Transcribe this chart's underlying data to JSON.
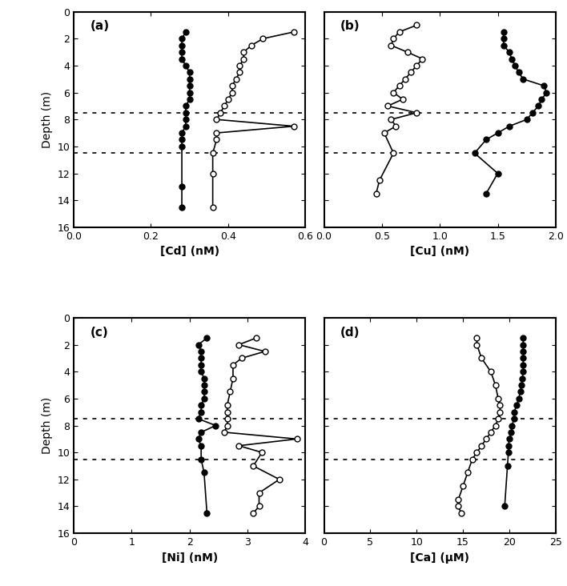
{
  "panels": [
    {
      "label": "(a)",
      "xlabel": "[Cd] (nM)",
      "xlim": [
        0.0,
        0.6
      ],
      "xticks": [
        0.0,
        0.2,
        0.4,
        0.6
      ],
      "dgt_x": [
        0.29,
        0.28,
        0.28,
        0.28,
        0.28,
        0.29,
        0.3,
        0.3,
        0.3,
        0.3,
        0.3,
        0.29,
        0.29,
        0.29,
        0.29,
        0.28,
        0.28,
        0.28,
        0.28,
        0.28
      ],
      "dgt_y": [
        1.5,
        2.0,
        2.5,
        3.0,
        3.5,
        4.0,
        4.5,
        5.0,
        5.5,
        6.0,
        6.5,
        7.0,
        7.5,
        8.0,
        8.5,
        9.0,
        9.5,
        10.0,
        13.0,
        14.5
      ],
      "dialysis_x": [
        0.57,
        0.49,
        0.46,
        0.44,
        0.44,
        0.43,
        0.43,
        0.42,
        0.41,
        0.41,
        0.4,
        0.39,
        0.38,
        0.37,
        0.57,
        0.37,
        0.37,
        0.36,
        0.36,
        0.36
      ],
      "dialysis_y": [
        1.5,
        2.0,
        2.5,
        3.0,
        3.5,
        4.0,
        4.5,
        5.0,
        5.5,
        6.0,
        6.5,
        7.0,
        7.5,
        8.0,
        8.5,
        9.0,
        9.5,
        10.5,
        12.0,
        14.5
      ]
    },
    {
      "label": "(b)",
      "xlabel": "[Cu] (nM)",
      "xlim": [
        0.0,
        2.0
      ],
      "xticks": [
        0.0,
        0.5,
        1.0,
        1.5,
        2.0
      ],
      "dgt_x": [
        1.55,
        1.55,
        1.55,
        1.6,
        1.62,
        1.65,
        1.68,
        1.72,
        1.9,
        1.92,
        1.88,
        1.85,
        1.8,
        1.75,
        1.6,
        1.5,
        1.4,
        1.3,
        1.5,
        1.4
      ],
      "dgt_y": [
        1.5,
        2.0,
        2.5,
        3.0,
        3.5,
        4.0,
        4.5,
        5.0,
        5.5,
        6.0,
        6.5,
        7.0,
        7.5,
        8.0,
        8.5,
        9.0,
        9.5,
        10.5,
        12.0,
        13.5
      ],
      "dialysis_x": [
        0.8,
        0.65,
        0.6,
        0.58,
        0.72,
        0.85,
        0.8,
        0.75,
        0.7,
        0.65,
        0.6,
        0.68,
        0.55,
        0.8,
        0.58,
        0.62,
        0.52,
        0.6,
        0.48,
        0.45
      ],
      "dialysis_y": [
        1.0,
        1.5,
        2.0,
        2.5,
        3.0,
        3.5,
        4.0,
        4.5,
        5.0,
        5.5,
        6.0,
        6.5,
        7.0,
        7.5,
        8.0,
        8.5,
        9.0,
        10.5,
        12.5,
        13.5
      ]
    },
    {
      "label": "(c)",
      "xlabel": "[Ni] (nM)",
      "xlim": [
        0,
        4
      ],
      "xticks": [
        0,
        1,
        2,
        3,
        4
      ],
      "dgt_x": [
        2.3,
        2.15,
        2.2,
        2.2,
        2.2,
        2.2,
        2.25,
        2.25,
        2.25,
        2.25,
        2.2,
        2.2,
        2.15,
        2.45,
        2.2,
        2.15,
        2.2,
        2.2,
        2.25,
        2.3
      ],
      "dgt_y": [
        1.5,
        2.0,
        2.5,
        3.0,
        3.5,
        4.0,
        4.5,
        5.0,
        5.5,
        6.0,
        6.5,
        7.0,
        7.5,
        8.0,
        8.5,
        9.0,
        9.5,
        10.5,
        11.5,
        14.5
      ],
      "dialysis_x": [
        3.15,
        2.85,
        3.3,
        2.9,
        2.75,
        2.75,
        2.7,
        2.65,
        2.65,
        2.65,
        2.65,
        2.6,
        3.85,
        2.85,
        3.25,
        3.1,
        3.55,
        3.2,
        3.2,
        3.1
      ],
      "dialysis_y": [
        1.5,
        2.0,
        2.5,
        3.0,
        3.5,
        4.5,
        5.5,
        6.5,
        7.0,
        7.5,
        8.0,
        8.5,
        9.0,
        9.5,
        10.0,
        11.0,
        12.0,
        13.0,
        14.0,
        14.5
      ]
    },
    {
      "label": "(d)",
      "xlabel": "[Ca] (μM)",
      "xlim": [
        0,
        25
      ],
      "xticks": [
        0,
        5,
        10,
        15,
        20,
        25
      ],
      "dgt_x": [
        21.5,
        21.5,
        21.5,
        21.5,
        21.5,
        21.5,
        21.4,
        21.3,
        21.2,
        21.0,
        20.8,
        20.5,
        20.5,
        20.3,
        20.2,
        20.0,
        19.9,
        19.9,
        19.8,
        19.5
      ],
      "dgt_y": [
        1.5,
        2.0,
        2.5,
        3.0,
        3.5,
        4.0,
        4.5,
        5.0,
        5.5,
        6.0,
        6.5,
        7.0,
        7.5,
        8.0,
        8.5,
        9.0,
        9.5,
        10.0,
        11.0,
        14.0
      ],
      "dialysis_x": [
        16.5,
        16.5,
        17.0,
        18.0,
        18.5,
        18.8,
        19.0,
        19.0,
        18.8,
        18.5,
        18.0,
        17.5,
        17.0,
        16.5,
        16.0,
        15.5,
        15.0,
        14.5,
        14.5,
        14.8
      ],
      "dialysis_y": [
        1.5,
        2.0,
        3.0,
        4.0,
        5.0,
        6.0,
        6.5,
        7.0,
        7.5,
        8.0,
        8.5,
        9.0,
        9.5,
        10.0,
        10.5,
        11.5,
        12.5,
        13.5,
        14.0,
        14.5
      ]
    }
  ],
  "ylim": [
    16,
    0
  ],
  "yticks": [
    0,
    2,
    4,
    6,
    8,
    10,
    12,
    14,
    16
  ],
  "ylabel": "Depth (m)",
  "hlines": [
    7.5,
    10.5
  ],
  "background_color": "#ffffff",
  "marker_size": 5,
  "linewidth": 1.2
}
